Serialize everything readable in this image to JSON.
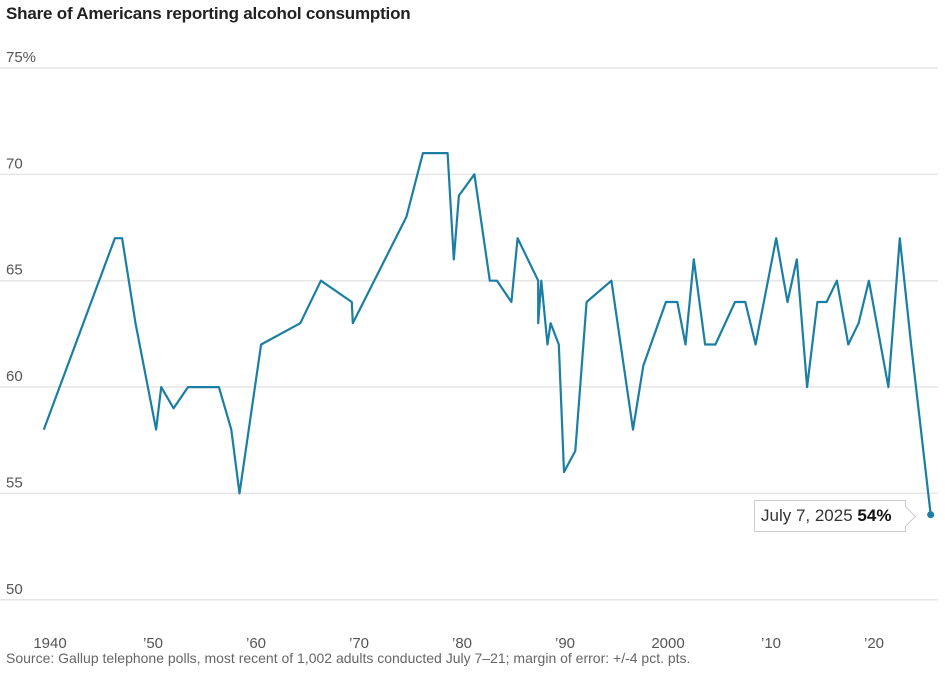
{
  "chart_data": {
    "type": "line",
    "title": "Share of Americans reporting alcohol consumption",
    "source": "Source: Gallup telephone polls, most recent of 1,002 adults conducted July 7–21; margin of error: +/-4 pct. pts.",
    "ylim": [
      50,
      75
    ],
    "xlim": [
      1938,
      2026
    ],
    "y_ticks": [
      {
        "v": 75,
        "label": "75%"
      },
      {
        "v": 70,
        "label": "70"
      },
      {
        "v": 65,
        "label": "65"
      },
      {
        "v": 60,
        "label": "60"
      },
      {
        "v": 55,
        "label": "55"
      },
      {
        "v": 50,
        "label": "50"
      }
    ],
    "x_ticks": [
      {
        "v": 1940,
        "label": "1940"
      },
      {
        "v": 1950,
        "label": "’50"
      },
      {
        "v": 1960,
        "label": "’60"
      },
      {
        "v": 1970,
        "label": "’70"
      },
      {
        "v": 1980,
        "label": "’80"
      },
      {
        "v": 1990,
        "label": "’90"
      },
      {
        "v": 2000,
        "label": "2000"
      },
      {
        "v": 2010,
        "label": "’10"
      },
      {
        "v": 2020,
        "label": "’20"
      }
    ],
    "grid": true,
    "line_color": "#1b7ea3",
    "series": [
      {
        "x": [
          1939.4,
          1946.3,
          1947,
          1948.3,
          1950.3,
          1950.8,
          1952,
          1953.4,
          1956.4,
          1957.6,
          1958.4,
          1960.5,
          1964.3,
          1966.3,
          1969.3,
          1969.4,
          1974.6,
          1976.2,
          1978.6,
          1979.2,
          1979.7,
          1981.2,
          1982.7,
          1983.4,
          1984.8,
          1985.4,
          1987.4,
          1987.4,
          1987.7,
          1988.3,
          1988.6,
          1989.4,
          1989.9,
          1991,
          1992.1,
          1994.5,
          1996.6,
          1997.6,
          1999.8,
          2000.9,
          2001.7,
          2002.5,
          2003.6,
          2004.6,
          2006.5,
          2007.5,
          2008.5,
          2010.5,
          2011.6,
          2012.5,
          2013.5,
          2014.5,
          2015.4,
          2016.4,
          2017.5,
          2018.5,
          2019.5,
          2021.4,
          2022.5,
          2023.6,
          2025.5
        ],
        "y": [
          58,
          67,
          67,
          63,
          58,
          60,
          59,
          60,
          60,
          58,
          55,
          62,
          63,
          65,
          64,
          63,
          68,
          71,
          71,
          66,
          69,
          70,
          65,
          65,
          64,
          67,
          65,
          63,
          65,
          62,
          63,
          62,
          56,
          57,
          64,
          65,
          58,
          61,
          64,
          64,
          62,
          66,
          62,
          62,
          64,
          64,
          62,
          67,
          64,
          66,
          60,
          64,
          64,
          65,
          62,
          63,
          65,
          60,
          67,
          62,
          54
        ]
      }
    ],
    "annotation": {
      "date": "July 7, 2025",
      "value": "54%"
    }
  }
}
